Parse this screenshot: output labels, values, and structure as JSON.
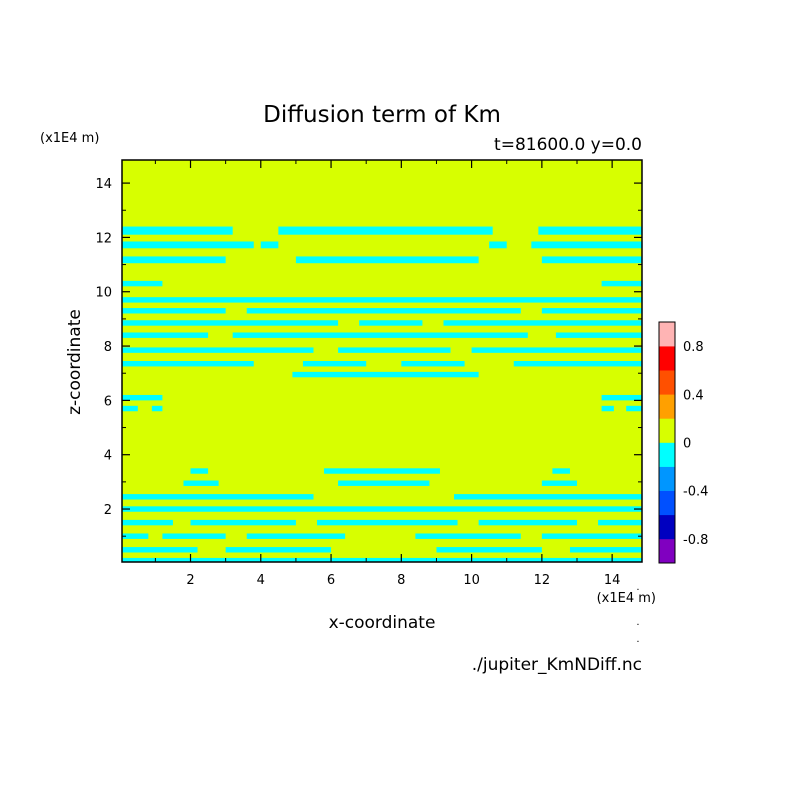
{
  "chart_data": {
    "type": "heatmap",
    "title": "Diffusion term of Km",
    "subtitle": "t=81600.0 y=0.0",
    "xlabel": "x-coordinate",
    "ylabel": "z-coordinate",
    "x_unit": "(x1E4 m)",
    "y_unit": "(x1E4 m)",
    "xlim": [
      0.05,
      14.85
    ],
    "ylim": [
      0.05,
      14.85
    ],
    "x_ticks": [
      "2",
      "4",
      "6",
      "8",
      "10",
      "12",
      "14"
    ],
    "y_ticks": [
      "2",
      "4",
      "6",
      "8",
      "10",
      "12",
      "14"
    ],
    "x_tick_values": [
      2,
      4,
      6,
      8,
      10,
      12,
      14
    ],
    "y_tick_values": [
      2,
      4,
      6,
      8,
      10,
      12,
      14
    ],
    "background_value": 0.1,
    "negative_value": -0.1,
    "positive_color": "#d7ff00",
    "negative_color": "#00ffff",
    "bands": [
      {
        "z": [
          12.1,
          12.4
        ],
        "x": [
          [
            0.05,
            3.2
          ],
          [
            4.5,
            10.6
          ],
          [
            11.9,
            14.85
          ]
        ]
      },
      {
        "z": [
          11.6,
          11.85
        ],
        "x": [
          [
            0.05,
            3.8
          ],
          [
            4.0,
            4.5
          ],
          [
            10.5,
            11.0
          ],
          [
            11.7,
            14.85
          ]
        ]
      },
      {
        "z": [
          11.05,
          11.3
        ],
        "x": [
          [
            0.05,
            3.0
          ],
          [
            5.0,
            10.2
          ],
          [
            12.0,
            14.85
          ]
        ]
      },
      {
        "z": [
          10.2,
          10.4
        ],
        "x": [
          [
            0.05,
            1.2
          ],
          [
            13.7,
            14.85
          ]
        ]
      },
      {
        "z": [
          9.6,
          9.8
        ],
        "x": [
          [
            0.05,
            14.85
          ]
        ]
      },
      {
        "z": [
          9.2,
          9.4
        ],
        "x": [
          [
            0.05,
            3.0
          ],
          [
            3.6,
            11.4
          ],
          [
            12.0,
            14.85
          ]
        ]
      },
      {
        "z": [
          8.75,
          8.95
        ],
        "x": [
          [
            0.05,
            6.2
          ],
          [
            6.8,
            8.6
          ],
          [
            9.2,
            14.85
          ]
        ]
      },
      {
        "z": [
          8.3,
          8.5
        ],
        "x": [
          [
            0.05,
            2.5
          ],
          [
            3.2,
            11.6
          ],
          [
            12.4,
            14.85
          ]
        ]
      },
      {
        "z": [
          7.75,
          7.95
        ],
        "x": [
          [
            0.05,
            5.5
          ],
          [
            6.2,
            9.4
          ],
          [
            10.0,
            14.85
          ]
        ]
      },
      {
        "z": [
          7.25,
          7.45
        ],
        "x": [
          [
            0.05,
            3.8
          ],
          [
            5.2,
            7.0
          ],
          [
            8.0,
            9.8
          ],
          [
            11.2,
            14.85
          ]
        ]
      },
      {
        "z": [
          6.85,
          7.05
        ],
        "x": [
          [
            4.9,
            10.2
          ]
        ]
      },
      {
        "z": [
          6.0,
          6.2
        ],
        "x": [
          [
            0.05,
            1.2
          ],
          [
            13.7,
            14.85
          ]
        ]
      },
      {
        "z": [
          5.6,
          5.8
        ],
        "x": [
          [
            0.05,
            0.5
          ],
          [
            0.9,
            1.2
          ],
          [
            13.7,
            14.05
          ],
          [
            14.4,
            14.85
          ]
        ]
      },
      {
        "z": [
          3.3,
          3.5
        ],
        "x": [
          [
            2.0,
            2.5
          ],
          [
            5.8,
            9.1
          ],
          [
            12.3,
            12.8
          ]
        ]
      },
      {
        "z": [
          2.85,
          3.05
        ],
        "x": [
          [
            1.8,
            2.8
          ],
          [
            6.2,
            8.8
          ],
          [
            12.0,
            13.0
          ]
        ]
      },
      {
        "z": [
          2.35,
          2.55
        ],
        "x": [
          [
            0.05,
            5.5
          ],
          [
            9.5,
            14.85
          ]
        ]
      },
      {
        "z": [
          1.9,
          2.1
        ],
        "x": [
          [
            0.05,
            14.85
          ]
        ]
      },
      {
        "z": [
          1.4,
          1.6
        ],
        "x": [
          [
            0.05,
            1.5
          ],
          [
            2.0,
            5.0
          ],
          [
            5.6,
            9.6
          ],
          [
            10.2,
            13.0
          ],
          [
            13.6,
            14.85
          ]
        ]
      },
      {
        "z": [
          0.9,
          1.1
        ],
        "x": [
          [
            0.05,
            0.8
          ],
          [
            1.2,
            3.0
          ],
          [
            3.6,
            6.4
          ],
          [
            8.4,
            11.4
          ],
          [
            12.0,
            14.85
          ]
        ]
      },
      {
        "z": [
          0.4,
          0.6
        ],
        "x": [
          [
            0.05,
            2.2
          ],
          [
            3.0,
            6.0
          ],
          [
            9.0,
            12.0
          ],
          [
            12.8,
            14.85
          ]
        ]
      },
      {
        "z": [
          0.05,
          0.2
        ],
        "x": [
          [
            0.05,
            14.85
          ]
        ]
      }
    ],
    "colorbar": {
      "colors": [
        "#8000c0",
        "#0000c0",
        "#0050ff",
        "#0096ff",
        "#00ffff",
        "#d7ff00",
        "#ffa000",
        "#ff5000",
        "#ff0000",
        "#ffb4b4"
      ],
      "tick_labels": [
        "0.8",
        "0.4",
        "0",
        "-0.4",
        "-0.8"
      ],
      "tick_values": [
        0.8,
        0.4,
        0,
        -0.4,
        -0.8
      ],
      "range": [
        -1.0,
        1.0
      ]
    },
    "filename": "./jupiter_KmNDiff.nc"
  }
}
